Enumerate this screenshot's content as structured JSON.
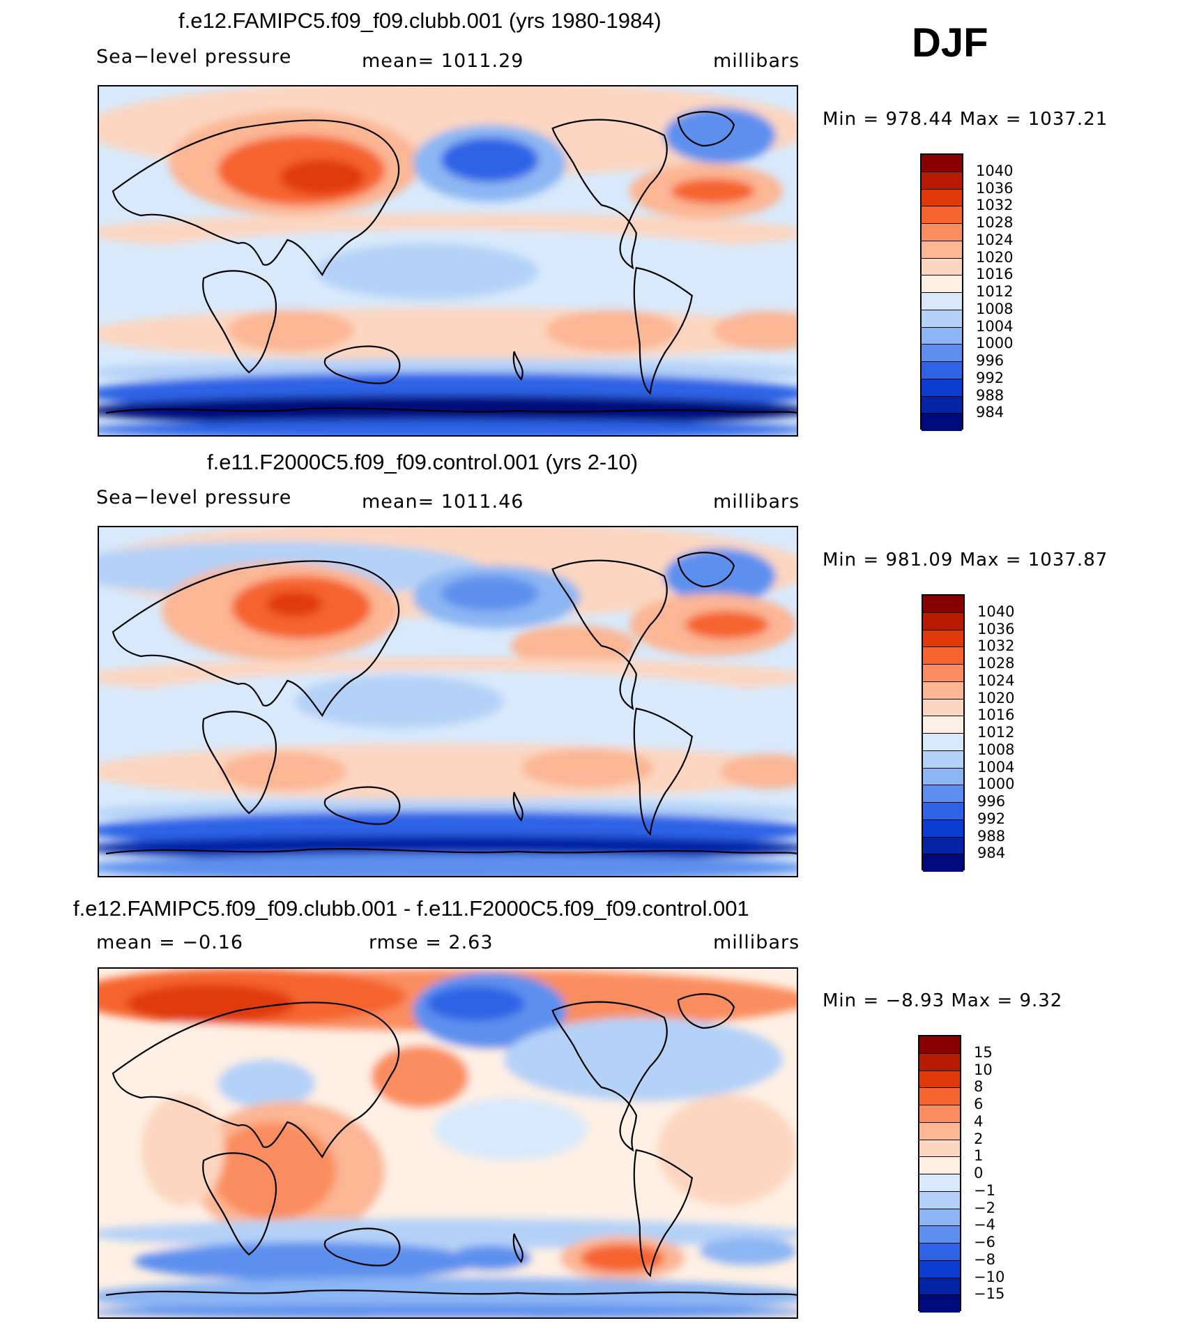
{
  "season": "DJF",
  "panels": [
    {
      "id": "test",
      "title": "f.e12.FAMIPC5.f09_f09.clubb.001 (yrs 1980-1984)",
      "left_label": "Sea−level  pressure",
      "center_label": "mean=  1011.29",
      "right_label": "millibars",
      "minmax": "Min  =  978.44  Max  =  1037.21",
      "field": "sea level pressure",
      "colorbar_labels": [
        "1040",
        "1036",
        "1032",
        "1028",
        "1024",
        "1020",
        "1016",
        "1012",
        "1008",
        "1004",
        "1000",
        "996",
        "992",
        "988",
        "984"
      ]
    },
    {
      "id": "control",
      "title": "f.e11.F2000C5.f09_f09.control.001 (yrs 2-10)",
      "left_label": "Sea−level  pressure",
      "center_label": "mean=  1011.46",
      "right_label": "millibars",
      "minmax": "Min  =  981.09  Max  =  1037.87",
      "field": "sea level pressure",
      "colorbar_labels": [
        "1040",
        "1036",
        "1032",
        "1028",
        "1024",
        "1020",
        "1016",
        "1012",
        "1008",
        "1004",
        "1000",
        "996",
        "992",
        "988",
        "984"
      ]
    },
    {
      "id": "difference",
      "title": "f.e12.FAMIPC5.f09_f09.clubb.001 - f.e11.F2000C5.f09_f09.control.001",
      "left_label": "mean  =    −0.16",
      "center_label": "rmse  =      2.63",
      "right_label": "millibars",
      "minmax": "Min  =    −8.93  Max  =      9.32",
      "field": "difference",
      "colorbar_labels": [
        "15",
        "10",
        "8",
        "6",
        "4",
        "2",
        "1",
        "0",
        "−1",
        "−2",
        "−4",
        "−6",
        "−8",
        "−10",
        "−15"
      ]
    }
  ],
  "colors": {
    "palette16": [
      "#870000",
      "#b81a00",
      "#e03a0a",
      "#f5632f",
      "#fa8d5f",
      "#fbb694",
      "#fcd6c0",
      "#fef0e4",
      "#d8e9fb",
      "#b4d1f7",
      "#8cb6f3",
      "#5d90ee",
      "#2e63e6",
      "#0d3dd0",
      "#0424a6",
      "#000a7a"
    ]
  },
  "chart_data": [
    {
      "type": "heatmap",
      "title": "f.e12.FAMIPC5.f09_f09.clubb.001 (yrs 1980-1984)",
      "variable": "Sea-level pressure",
      "units": "millibars",
      "season": "DJF",
      "mean": 1011.29,
      "min": 978.44,
      "max": 1037.21,
      "contour_levels": [
        984,
        988,
        992,
        996,
        1000,
        1004,
        1008,
        1012,
        1016,
        1020,
        1024,
        1028,
        1032,
        1036,
        1040
      ]
    },
    {
      "type": "heatmap",
      "title": "f.e11.F2000C5.f09_f09.control.001 (yrs 2-10)",
      "variable": "Sea-level pressure",
      "units": "millibars",
      "season": "DJF",
      "mean": 1011.46,
      "min": 981.09,
      "max": 1037.87,
      "contour_levels": [
        984,
        988,
        992,
        996,
        1000,
        1004,
        1008,
        1012,
        1016,
        1020,
        1024,
        1028,
        1032,
        1036,
        1040
      ]
    },
    {
      "type": "heatmap",
      "title": "f.e12.FAMIPC5.f09_f09.clubb.001 - f.e11.F2000C5.f09_f09.control.001",
      "variable": "Sea-level pressure difference",
      "units": "millibars",
      "season": "DJF",
      "mean": -0.16,
      "rmse": 2.63,
      "min": -8.93,
      "max": 9.32,
      "contour_levels": [
        -15,
        -10,
        -8,
        -6,
        -4,
        -2,
        -1,
        0,
        1,
        2,
        4,
        6,
        8,
        10,
        15
      ]
    }
  ]
}
